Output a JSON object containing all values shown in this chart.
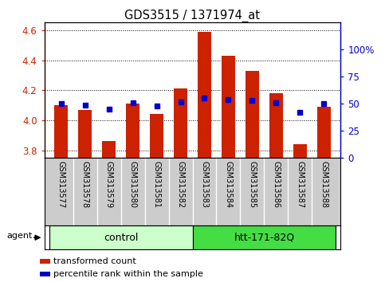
{
  "title": "GDS3515 / 1371974_at",
  "samples": [
    "GSM313577",
    "GSM313578",
    "GSM313579",
    "GSM313580",
    "GSM313581",
    "GSM313582",
    "GSM313583",
    "GSM313584",
    "GSM313585",
    "GSM313586",
    "GSM313587",
    "GSM313588"
  ],
  "transformed_count": [
    4.1,
    4.07,
    3.86,
    4.11,
    4.04,
    4.21,
    4.59,
    4.43,
    4.33,
    4.18,
    3.84,
    4.09
  ],
  "percentile_rank": [
    50,
    49,
    45,
    51,
    48,
    52,
    55,
    54,
    53,
    51,
    42,
    50
  ],
  "groups": [
    {
      "label": "control",
      "start": 0,
      "end": 5,
      "color": "#CCFFCC"
    },
    {
      "label": "htt-171-82Q",
      "start": 6,
      "end": 11,
      "color": "#44DD44"
    }
  ],
  "bar_color": "#CC2200",
  "dot_color": "#0000CC",
  "ylim_left": [
    3.75,
    4.65
  ],
  "ylim_right": [
    0,
    125
  ],
  "yticks_left": [
    3.8,
    4.0,
    4.2,
    4.4,
    4.6
  ],
  "yticks_right": [
    0,
    25,
    50,
    75,
    100
  ],
  "ytick_labels_right": [
    "0",
    "25",
    "50",
    "75",
    "100%"
  ],
  "legend_red": "transformed count",
  "legend_blue": "percentile rank within the sample",
  "background_color": "#FFFFFF",
  "plot_bg_color": "#FFFFFF",
  "bar_bottom": 3.75,
  "axis_color_left": "#CC2200",
  "axis_color_right": "#0000CC",
  "sample_bg": "#CCCCCC",
  "grid_divider_color": "#FFFFFF"
}
